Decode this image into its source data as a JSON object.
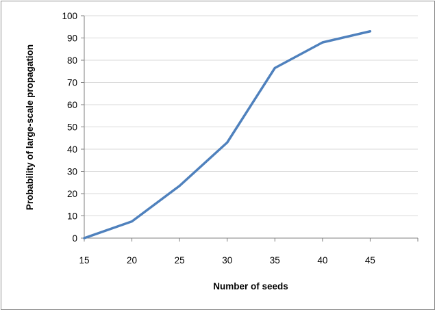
{
  "chart_data": {
    "type": "line",
    "title": "",
    "xlabel": "Number of seeds",
    "ylabel": "Probability of large-scale propagation",
    "x": [
      15,
      20,
      25,
      30,
      35,
      40,
      45
    ],
    "series": [
      {
        "values": [
          0,
          7.5,
          23.5,
          43,
          76.5,
          88,
          93
        ],
        "color": "#4F81BD"
      }
    ],
    "xlim": [
      15,
      50
    ],
    "ylim": [
      0,
      100
    ],
    "xticks": [
      15,
      20,
      25,
      30,
      35,
      40,
      45
    ],
    "yticks": [
      0,
      10,
      20,
      30,
      40,
      50,
      60,
      70,
      80,
      90,
      100
    ],
    "grid": "horizontal",
    "legend": "none",
    "colors": {
      "line": "#4F81BD",
      "grid": "#d9d9d9",
      "axis": "#7f7f7f"
    }
  }
}
